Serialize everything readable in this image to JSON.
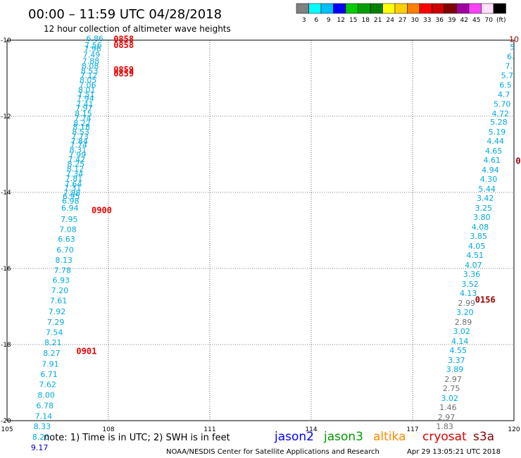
{
  "header": {
    "title": "00:00 – 11:59 UTC 04/28/2018",
    "subtitle": "12 hour collection of altimeter wave heights"
  },
  "colorbar": {
    "colors": [
      "#808080",
      "#00ffff",
      "#00bfff",
      "#0000ff",
      "#00cc00",
      "#00a000",
      "#008000",
      "#ffff00",
      "#ffd000",
      "#ff8000",
      "#ff0000",
      "#cc0000",
      "#800000",
      "#a000a0",
      "#ff40ff",
      "#ffe0ff",
      "#000000"
    ],
    "ticks": [
      "3",
      "6",
      "9",
      "12",
      "15",
      "18",
      "21",
      "24",
      "27",
      "30",
      "33",
      "36",
      "39",
      "42",
      "45",
      "70",
      "(ft)"
    ]
  },
  "footer": {
    "note": "note:  1) Time is in UTC;  2) SWH is in feet",
    "credit": "NOAA/NESDIS Center for Satellite Applications and Research",
    "timestamp": "Apr 29 13:05:21 UTC 2018",
    "legend": [
      {
        "label": "jason2",
        "color": "#0000ff"
      },
      {
        "label": "jason3",
        "color": "#009900"
      },
      {
        "label": "altika",
        "color": "#ff8800"
      },
      {
        "label": "cryosat",
        "color": "#dd0000"
      },
      {
        "label": "s3a",
        "color": "#880000"
      }
    ]
  },
  "chart_data": {
    "type": "scatter",
    "xlim": [
      105,
      120
    ],
    "ylim": [
      -20,
      -10
    ],
    "xticks": [
      "105",
      "108",
      "111",
      "114",
      "117",
      "120"
    ],
    "yticks": [
      "-10",
      "-12",
      "-14",
      "-16",
      "-18",
      "-20"
    ],
    "grid": true,
    "colors": {
      "cyan": "#00aadd",
      "gray": "#707070",
      "red": "#ee0000",
      "darkred": "#990000",
      "blue": "#0000cc"
    },
    "points": [
      {
        "lon": 107.6,
        "lat": -10.03,
        "label": "6.86",
        "color": "cyan"
      },
      {
        "lon": 107.55,
        "lat": -10.2,
        "label": "7.56",
        "color": "cyan"
      },
      {
        "lon": 107.53,
        "lat": -10.3,
        "label": "7.96",
        "color": "cyan"
      },
      {
        "lon": 107.5,
        "lat": -10.45,
        "label": "7.49",
        "color": "cyan"
      },
      {
        "lon": 107.48,
        "lat": -10.62,
        "label": "7.88",
        "color": "cyan"
      },
      {
        "lon": 107.46,
        "lat": -10.75,
        "label": "8.08",
        "color": "cyan"
      },
      {
        "lon": 107.44,
        "lat": -10.88,
        "label": "8.53",
        "color": "cyan"
      },
      {
        "lon": 107.42,
        "lat": -11.0,
        "label": "7.12",
        "color": "cyan"
      },
      {
        "lon": 107.4,
        "lat": -11.12,
        "label": "8.05",
        "color": "cyan"
      },
      {
        "lon": 107.38,
        "lat": -11.25,
        "label": "7.06",
        "color": "cyan"
      },
      {
        "lon": 107.36,
        "lat": -11.38,
        "label": "8.01",
        "color": "cyan"
      },
      {
        "lon": 107.34,
        "lat": -11.5,
        "label": "7.51",
        "color": "cyan"
      },
      {
        "lon": 107.32,
        "lat": -11.6,
        "label": "7.94",
        "color": "cyan"
      },
      {
        "lon": 107.3,
        "lat": -11.75,
        "label": "7.41",
        "color": "cyan"
      },
      {
        "lon": 107.28,
        "lat": -11.85,
        "label": "7.97",
        "color": "cyan"
      },
      {
        "lon": 107.26,
        "lat": -12.0,
        "label": "8.15",
        "color": "cyan"
      },
      {
        "lon": 107.24,
        "lat": -12.12,
        "label": "7.74",
        "color": "cyan"
      },
      {
        "lon": 107.22,
        "lat": -12.25,
        "label": "8.22",
        "color": "cyan"
      },
      {
        "lon": 107.2,
        "lat": -12.35,
        "label": "8.18",
        "color": "cyan"
      },
      {
        "lon": 107.18,
        "lat": -12.48,
        "label": "8.53",
        "color": "cyan"
      },
      {
        "lon": 107.16,
        "lat": -12.6,
        "label": "7.73",
        "color": "cyan"
      },
      {
        "lon": 107.14,
        "lat": -12.72,
        "label": "7.84",
        "color": "cyan"
      },
      {
        "lon": 107.12,
        "lat": -12.82,
        "label": "7.74",
        "color": "cyan"
      },
      {
        "lon": 107.1,
        "lat": -12.95,
        "label": "8.31",
        "color": "cyan"
      },
      {
        "lon": 107.08,
        "lat": -13.08,
        "label": "7.99",
        "color": "cyan"
      },
      {
        "lon": 107.06,
        "lat": -13.2,
        "label": "7.42",
        "color": "cyan"
      },
      {
        "lon": 107.04,
        "lat": -13.32,
        "label": "8.25",
        "color": "cyan"
      },
      {
        "lon": 107.02,
        "lat": -13.45,
        "label": "8.12",
        "color": "cyan"
      },
      {
        "lon": 107.0,
        "lat": -13.58,
        "label": "7.34",
        "color": "cyan"
      },
      {
        "lon": 106.98,
        "lat": -13.7,
        "label": "7.81",
        "color": "cyan"
      },
      {
        "lon": 106.96,
        "lat": -13.85,
        "label": "7.64",
        "color": "cyan"
      },
      {
        "lon": 106.94,
        "lat": -13.95,
        "label": "7.31",
        "color": "cyan"
      },
      {
        "lon": 106.92,
        "lat": -14.08,
        "label": "7.88",
        "color": "cyan"
      },
      {
        "lon": 106.9,
        "lat": -14.18,
        "label": "6.95",
        "color": "cyan"
      },
      {
        "lon": 106.88,
        "lat": -14.3,
        "label": "6.98",
        "color": "cyan"
      },
      {
        "lon": 106.86,
        "lat": -14.48,
        "label": "6.94",
        "color": "cyan"
      },
      {
        "lon": 106.84,
        "lat": -14.78,
        "label": "7.95",
        "color": "cyan"
      },
      {
        "lon": 106.8,
        "lat": -15.05,
        "label": "7.08",
        "color": "cyan"
      },
      {
        "lon": 106.76,
        "lat": -15.3,
        "label": "6.63",
        "color": "cyan"
      },
      {
        "lon": 106.72,
        "lat": -15.58,
        "label": "6.70",
        "color": "cyan"
      },
      {
        "lon": 106.68,
        "lat": -15.85,
        "label": "8.13",
        "color": "cyan"
      },
      {
        "lon": 106.64,
        "lat": -16.12,
        "label": "7.78",
        "color": "cyan"
      },
      {
        "lon": 106.6,
        "lat": -16.38,
        "label": "6.93",
        "color": "cyan"
      },
      {
        "lon": 106.56,
        "lat": -16.65,
        "label": "7.20",
        "color": "cyan"
      },
      {
        "lon": 106.52,
        "lat": -16.92,
        "label": "7.61",
        "color": "cyan"
      },
      {
        "lon": 106.48,
        "lat": -17.2,
        "label": "7.92",
        "color": "cyan"
      },
      {
        "lon": 106.44,
        "lat": -17.48,
        "label": "7.29",
        "color": "cyan"
      },
      {
        "lon": 106.4,
        "lat": -17.75,
        "label": "7.54",
        "color": "cyan"
      },
      {
        "lon": 106.36,
        "lat": -18.02,
        "label": "8.21",
        "color": "cyan"
      },
      {
        "lon": 106.32,
        "lat": -18.3,
        "label": "8.27",
        "color": "cyan"
      },
      {
        "lon": 106.28,
        "lat": -18.58,
        "label": "7.91",
        "color": "cyan"
      },
      {
        "lon": 106.24,
        "lat": -18.85,
        "label": "6.71",
        "color": "cyan"
      },
      {
        "lon": 106.2,
        "lat": -19.12,
        "label": "7.62",
        "color": "cyan"
      },
      {
        "lon": 106.16,
        "lat": -19.4,
        "label": "8.00",
        "color": "cyan"
      },
      {
        "lon": 106.12,
        "lat": -19.68,
        "label": "6.78",
        "color": "cyan"
      },
      {
        "lon": 106.08,
        "lat": -19.95,
        "label": "7.14",
        "color": "cyan"
      },
      {
        "lon": 106.04,
        "lat": -20.22,
        "label": "8.33",
        "color": "cyan"
      },
      {
        "lon": 106.0,
        "lat": -20.5,
        "label": "8.20",
        "color": "cyan"
      },
      {
        "lon": 105.96,
        "lat": -20.78,
        "label": "9.17",
        "color": "blue"
      },
      {
        "lon": 120.0,
        "lat": -10.05,
        "label": "10",
        "color": "darkred"
      },
      {
        "lon": 119.95,
        "lat": -10.25,
        "label": "5",
        "color": "cyan"
      },
      {
        "lon": 119.9,
        "lat": -10.5,
        "label": "6.",
        "color": "cyan"
      },
      {
        "lon": 119.85,
        "lat": -10.75,
        "label": "7.",
        "color": "cyan"
      },
      {
        "lon": 119.8,
        "lat": -11.0,
        "label": "5.7",
        "color": "cyan"
      },
      {
        "lon": 119.75,
        "lat": -11.25,
        "label": "6.5",
        "color": "cyan"
      },
      {
        "lon": 119.7,
        "lat": -11.5,
        "label": "4.7",
        "color": "cyan"
      },
      {
        "lon": 119.65,
        "lat": -11.75,
        "label": "5.70",
        "color": "cyan"
      },
      {
        "lon": 119.6,
        "lat": -12.0,
        "label": "4.72",
        "color": "cyan"
      },
      {
        "lon": 119.55,
        "lat": -12.22,
        "label": "5.28",
        "color": "cyan"
      },
      {
        "lon": 119.5,
        "lat": -12.48,
        "label": "5.19",
        "color": "cyan"
      },
      {
        "lon": 119.45,
        "lat": -12.72,
        "label": "4.44",
        "color": "cyan"
      },
      {
        "lon": 119.4,
        "lat": -12.98,
        "label": "4.65",
        "color": "cyan"
      },
      {
        "lon": 119.35,
        "lat": -13.22,
        "label": "4.61",
        "color": "cyan"
      },
      {
        "lon": 119.3,
        "lat": -13.48,
        "label": "4.94",
        "color": "cyan"
      },
      {
        "lon": 119.25,
        "lat": -13.72,
        "label": "4.30",
        "color": "cyan"
      },
      {
        "lon": 119.2,
        "lat": -13.98,
        "label": "5.44",
        "color": "cyan"
      },
      {
        "lon": 119.15,
        "lat": -14.22,
        "label": "3.42",
        "color": "cyan"
      },
      {
        "lon": 119.1,
        "lat": -14.48,
        "label": "3.25",
        "color": "cyan"
      },
      {
        "lon": 119.05,
        "lat": -14.72,
        "label": "3.80",
        "color": "cyan"
      },
      {
        "lon": 119.0,
        "lat": -14.98,
        "label": "4.08",
        "color": "cyan"
      },
      {
        "lon": 118.95,
        "lat": -15.22,
        "label": "3.85",
        "color": "cyan"
      },
      {
        "lon": 118.9,
        "lat": -15.48,
        "label": "4.05",
        "color": "cyan"
      },
      {
        "lon": 118.85,
        "lat": -15.72,
        "label": "4.51",
        "color": "cyan"
      },
      {
        "lon": 118.8,
        "lat": -15.98,
        "label": "4.07",
        "color": "cyan"
      },
      {
        "lon": 118.75,
        "lat": -16.22,
        "label": "3.36",
        "color": "cyan"
      },
      {
        "lon": 118.7,
        "lat": -16.48,
        "label": "3.52",
        "color": "cyan"
      },
      {
        "lon": 118.65,
        "lat": -16.72,
        "label": "4.13",
        "color": "cyan"
      },
      {
        "lon": 118.6,
        "lat": -16.98,
        "label": "2.99",
        "color": "gray"
      },
      {
        "lon": 118.55,
        "lat": -17.22,
        "label": "3.20",
        "color": "cyan"
      },
      {
        "lon": 118.5,
        "lat": -17.48,
        "label": "2.89",
        "color": "gray"
      },
      {
        "lon": 118.45,
        "lat": -17.72,
        "label": "3.02",
        "color": "cyan"
      },
      {
        "lon": 118.4,
        "lat": -17.98,
        "label": "4.14",
        "color": "cyan"
      },
      {
        "lon": 118.35,
        "lat": -18.22,
        "label": "4.55",
        "color": "cyan"
      },
      {
        "lon": 118.3,
        "lat": -18.48,
        "label": "3.37",
        "color": "cyan"
      },
      {
        "lon": 118.25,
        "lat": -18.72,
        "label": "3.89",
        "color": "cyan"
      },
      {
        "lon": 118.2,
        "lat": -18.98,
        "label": "2.97",
        "color": "gray"
      },
      {
        "lon": 118.15,
        "lat": -19.22,
        "label": "2.75",
        "color": "gray"
      },
      {
        "lon": 118.1,
        "lat": -19.48,
        "label": "3.02",
        "color": "cyan"
      },
      {
        "lon": 118.05,
        "lat": -19.72,
        "label": "1.46",
        "color": "gray"
      },
      {
        "lon": 118.0,
        "lat": -19.98,
        "label": "2.97",
        "color": "gray"
      },
      {
        "lon": 117.95,
        "lat": -20.22,
        "label": "1.83",
        "color": "gray"
      }
    ],
    "time_labels": [
      {
        "lon": 108.15,
        "lat": -10.05,
        "label": "0858",
        "color": "red"
      },
      {
        "lon": 108.15,
        "lat": -10.2,
        "label": "0858",
        "color": "red"
      },
      {
        "lon": 108.15,
        "lat": -10.85,
        "label": "0859",
        "color": "red"
      },
      {
        "lon": 108.15,
        "lat": -10.95,
        "label": "0859",
        "color": "red"
      },
      {
        "lon": 107.5,
        "lat": -14.55,
        "label": "0900",
        "color": "red"
      },
      {
        "lon": 107.05,
        "lat": -18.25,
        "label": "0901",
        "color": "red"
      },
      {
        "lon": 118.85,
        "lat": -16.9,
        "label": "0156",
        "color": "darkred"
      },
      {
        "lon": 120.05,
        "lat": -13.25,
        "label": "0",
        "color": "darkred"
      }
    ]
  }
}
